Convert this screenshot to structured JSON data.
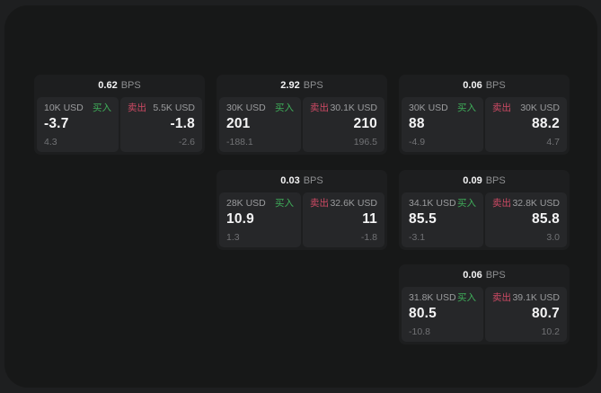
{
  "app": {
    "name": "bps-quote-board"
  },
  "labels": {
    "bps": "BPS",
    "buy": "买入",
    "sell": "卖出"
  },
  "colors": {
    "outer_background": "#1e1f20",
    "panel_background": "#171818",
    "card_background": "#1d1e1f",
    "tile_background": "#262729",
    "buy_green": "#3fae5a",
    "sell_red": "#cd4a64",
    "text_primary": "#f4f4f5",
    "text_secondary": "#9b9c9e",
    "text_muted": "#717275"
  },
  "cards": [
    {
      "col": 1,
      "row": 1,
      "bps": "0.62",
      "buy": {
        "size": "10K USD",
        "price": "-3.7",
        "delta": "4.3"
      },
      "sell": {
        "size": "5.5K USD",
        "price": "-1.8",
        "delta": "-2.6"
      }
    },
    {
      "col": 2,
      "row": 1,
      "bps": "2.92",
      "buy": {
        "size": "30K USD",
        "price": "201",
        "delta": "-188.1"
      },
      "sell": {
        "size": "30.1K USD",
        "price": "210",
        "delta": "196.5"
      }
    },
    {
      "col": 3,
      "row": 1,
      "bps": "0.06",
      "buy": {
        "size": "30K USD",
        "price": "88",
        "delta": "-4.9"
      },
      "sell": {
        "size": "30K USD",
        "price": "88.2",
        "delta": "4.7"
      }
    },
    {
      "col": 2,
      "row": 2,
      "bps": "0.03",
      "buy": {
        "size": "28K USD",
        "price": "10.9",
        "delta": "1.3"
      },
      "sell": {
        "size": "32.6K USD",
        "price": "11",
        "delta": "-1.8"
      }
    },
    {
      "col": 3,
      "row": 2,
      "bps": "0.09",
      "buy": {
        "size": "34.1K USD",
        "price": "85.5",
        "delta": "-3.1"
      },
      "sell": {
        "size": "32.8K USD",
        "price": "85.8",
        "delta": "3.0"
      }
    },
    {
      "col": 3,
      "row": 3,
      "bps": "0.06",
      "buy": {
        "size": "31.8K USD",
        "price": "80.5",
        "delta": "-10.8"
      },
      "sell": {
        "size": "39.1K USD",
        "price": "80.7",
        "delta": "10.2"
      }
    }
  ]
}
